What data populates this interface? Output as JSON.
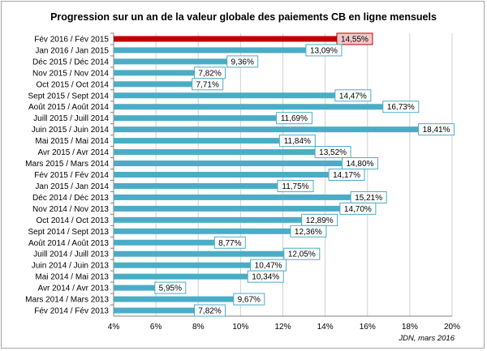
{
  "chart_data": {
    "type": "bar",
    "orientation": "horizontal",
    "title": "Progression sur un an de la valeur globale des paiements CB en ligne mensuels",
    "source": "JDN, mars 2016",
    "xlim": [
      4,
      20
    ],
    "xticks": [
      4,
      6,
      8,
      10,
      12,
      14,
      16,
      18,
      20
    ],
    "tick_suffix": "%",
    "grid": "vertical",
    "series_color": "#4bacc6",
    "highlight_color": "#c00000",
    "highlight_label_bg": "#f2c9c9",
    "highlight_index": 0,
    "categories": [
      "Fév 2016 / Fév 2015",
      "Jan 2016 / Jan 2015",
      "Déc 2015 / Déc 2014",
      "Nov 2015 / Nov 2014",
      "Oct 2015 / Oct 2014",
      "Sept 2015 / Sept 2014",
      "Août 2015 / Août 2014",
      "Juill 2015 / Juill 2014",
      "Juin 2015 / Juin 2014",
      "Mai 2015 / Mai 2014",
      "Avr 2015 / Avr 2014",
      "Mars 2015 / Mars 2014",
      "Fév 2015 / Fév 2014",
      "Jan 2015 / Jan 2014",
      "Déc 2014 / Déc 2013",
      "Nov 2014 / Nov 2013",
      "Oct 2014 / Oct 2013",
      "Sept 2014 / Sept 2013",
      "Août 2014 / Août 2013",
      "Juill 2014 / Juill 2013",
      "Juin 2014 / Juin 2013",
      "Mai 2014 / Mai 2013",
      "Avr 2014 / Avr 2013",
      "Mars 2014 / Mars 2013",
      "Fév 2014 / Fév 2013"
    ],
    "values": [
      14.55,
      13.09,
      9.36,
      7.82,
      7.71,
      14.47,
      16.73,
      11.69,
      18.41,
      11.84,
      13.52,
      14.8,
      14.17,
      11.75,
      15.21,
      14.7,
      12.89,
      12.36,
      8.77,
      12.05,
      10.47,
      10.34,
      5.95,
      9.67,
      7.82
    ],
    "value_labels": [
      "14,55%",
      "13,09%",
      "9,36%",
      "7,82%",
      "7,71%",
      "14,47%",
      "16,73%",
      "11,69%",
      "18,41%",
      "11,84%",
      "13,52%",
      "14,80%",
      "14,17%",
      "11,75%",
      "15,21%",
      "14,70%",
      "12,89%",
      "12,36%",
      "8,77%",
      "12,05%",
      "10,47%",
      "10,34%",
      "5,95%",
      "9,67%",
      "7,82%"
    ]
  }
}
